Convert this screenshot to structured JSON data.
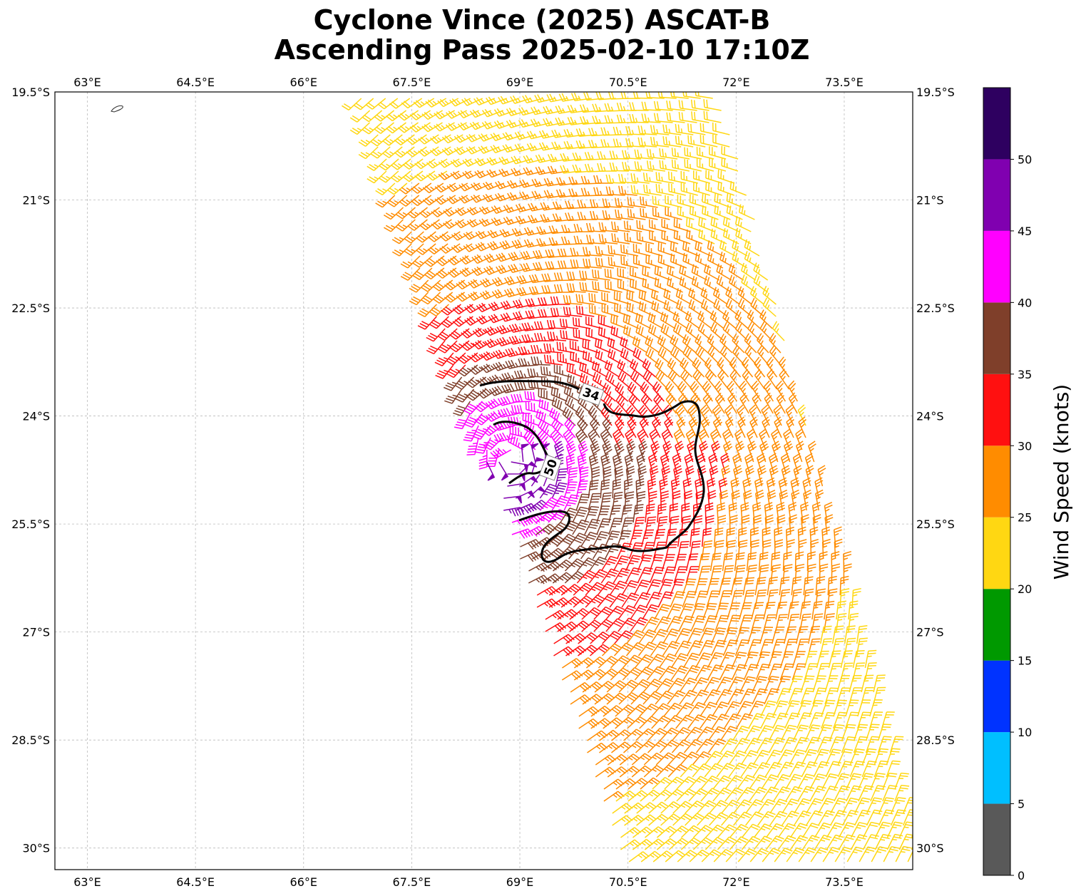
{
  "title": {
    "line1": "Cyclone Vince (2025) ASCAT-B",
    "line2": "Ascending Pass 2025-02-10 17:10Z"
  },
  "map": {
    "lon_range": [
      62.55,
      74.45
    ],
    "lat_range": [
      -30.3,
      -19.5
    ],
    "lon_ticks": [
      "63°E",
      "64.5°E",
      "66°E",
      "67.5°E",
      "69°E",
      "70.5°E",
      "72°E",
      "73.5°E"
    ],
    "lon_tick_values": [
      63,
      64.5,
      66,
      67.5,
      69,
      70.5,
      72,
      73.5
    ],
    "lat_ticks": [
      "19.5°S",
      "21°S",
      "22.5°S",
      "24°S",
      "25.5°S",
      "27°S",
      "28.5°S",
      "30°S"
    ],
    "lat_tick_values": [
      -19.5,
      -21,
      -22.5,
      -24,
      -25.5,
      -27,
      -28.5,
      -30
    ],
    "gridlines": true,
    "storm_center": {
      "lon": 68.9,
      "lat": -24.6
    },
    "contours": [
      {
        "label": "34",
        "kind": "34-kt wind radius"
      },
      {
        "label": "50",
        "kind": "50-kt wind radius"
      }
    ]
  },
  "colorbar": {
    "label": "Wind Speed (knots)",
    "ticks": [
      "0",
      "5",
      "10",
      "15",
      "20",
      "25",
      "30",
      "35",
      "40",
      "45",
      "50"
    ],
    "bins": [
      {
        "min": 0,
        "max": 5,
        "color": "#595959"
      },
      {
        "min": 5,
        "max": 10,
        "color": "#00bfff"
      },
      {
        "min": 10,
        "max": 15,
        "color": "#0033ff"
      },
      {
        "min": 15,
        "max": 20,
        "color": "#009900"
      },
      {
        "min": 20,
        "max": 25,
        "color": "#ffd712"
      },
      {
        "min": 25,
        "max": 30,
        "color": "#ff8c00"
      },
      {
        "min": 30,
        "max": 35,
        "color": "#ff1010"
      },
      {
        "min": 35,
        "max": 40,
        "color": "#7f3f2a"
      },
      {
        "min": 40,
        "max": 45,
        "color": "#ff00ff"
      },
      {
        "min": 45,
        "max": 50,
        "color": "#8000b0"
      },
      {
        "min": 50,
        "max": 55,
        "color": "#2e0060"
      }
    ]
  }
}
